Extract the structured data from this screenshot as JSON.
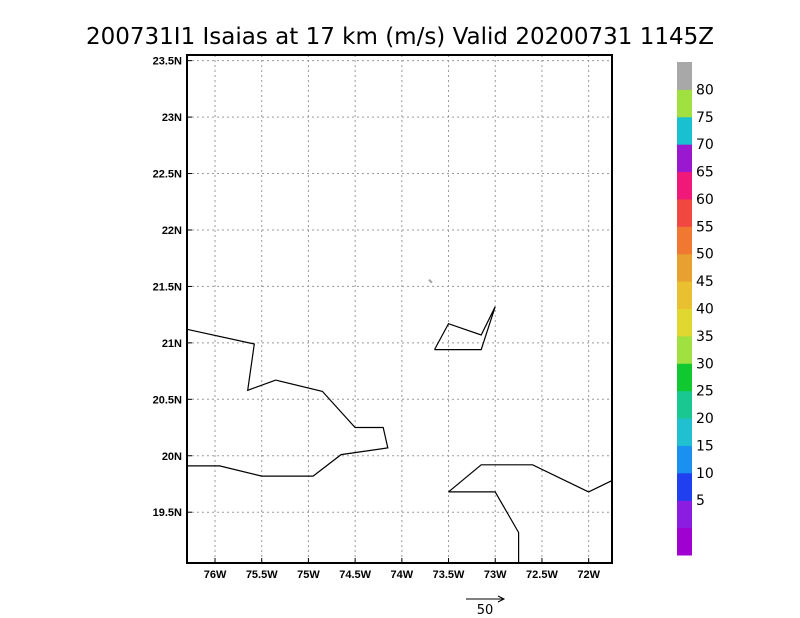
{
  "title": "200731I1 Isaias at 17 km (m/s) Valid 20200731 1145Z",
  "map": {
    "lon_range": [
      -76.3,
      -71.75
    ],
    "lat_range": [
      19.05,
      23.55
    ],
    "lon_ticks": [
      {
        "value": -76.0,
        "label": "76W"
      },
      {
        "value": -75.5,
        "label": "75.5W"
      },
      {
        "value": -75.0,
        "label": "75W"
      },
      {
        "value": -74.5,
        "label": "74.5W"
      },
      {
        "value": -74.0,
        "label": "74W"
      },
      {
        "value": -73.5,
        "label": "73.5W"
      },
      {
        "value": -73.0,
        "label": "73W"
      },
      {
        "value": -72.5,
        "label": "72.5W"
      },
      {
        "value": -72.0,
        "label": "72W"
      }
    ],
    "lat_ticks": [
      {
        "value": 19.5,
        "label": "19.5N"
      },
      {
        "value": 20.0,
        "label": "20N"
      },
      {
        "value": 20.5,
        "label": "20.5N"
      },
      {
        "value": 21.0,
        "label": "21N"
      },
      {
        "value": 21.5,
        "label": "21.5N"
      },
      {
        "value": 22.0,
        "label": "22N"
      },
      {
        "value": 22.5,
        "label": "22.5N"
      },
      {
        "value": 23.0,
        "label": "23N"
      },
      {
        "value": 23.5,
        "label": "23.5N"
      }
    ],
    "grid": true,
    "coastlines": [
      {
        "name": "cuba-north",
        "points": [
          [
            -76.3,
            21.12
          ],
          [
            -75.58,
            20.99
          ],
          [
            -75.65,
            20.58
          ],
          [
            -75.35,
            20.67
          ],
          [
            -74.85,
            20.57
          ],
          [
            -74.5,
            20.25
          ],
          [
            -74.2,
            20.25
          ],
          [
            -74.15,
            20.07
          ],
          [
            -74.65,
            20.01
          ],
          [
            -74.95,
            19.82
          ],
          [
            -75.5,
            19.82
          ],
          [
            -75.95,
            19.91
          ],
          [
            -76.3,
            19.91
          ]
        ]
      },
      {
        "name": "great-inagua",
        "points": [
          [
            -73.65,
            20.94
          ],
          [
            -73.5,
            21.17
          ],
          [
            -73.15,
            21.07
          ],
          [
            -73.0,
            21.32
          ],
          [
            -73.15,
            20.94
          ],
          [
            -73.65,
            20.94
          ]
        ]
      },
      {
        "name": "hispaniola-north",
        "points": [
          [
            -73.5,
            19.68
          ],
          [
            -73.15,
            19.92
          ],
          [
            -72.6,
            19.92
          ],
          [
            -72.0,
            19.68
          ],
          [
            -71.75,
            19.78
          ]
        ]
      },
      {
        "name": "hispaniola-nw-peninsula",
        "points": [
          [
            -73.5,
            19.68
          ],
          [
            -73.0,
            19.68
          ],
          [
            -72.75,
            19.32
          ],
          [
            -72.75,
            19.05
          ]
        ]
      }
    ],
    "vectors": [
      {
        "lon": -73.71,
        "lat": 21.56,
        "u": 1.5,
        "v": -1.5,
        "color": "#a0a0a0"
      }
    ]
  },
  "reference_vector": {
    "label": "50"
  },
  "colorbar": {
    "levels": [
      {
        "label": "",
        "color": "#a000d0"
      },
      {
        "label": "5",
        "color": "#8a1de0"
      },
      {
        "label": "10",
        "color": "#2040f0"
      },
      {
        "label": "15",
        "color": "#1a90f0"
      },
      {
        "label": "20",
        "color": "#20c0d0"
      },
      {
        "label": "25",
        "color": "#18c890"
      },
      {
        "label": "30",
        "color": "#10c830"
      },
      {
        "label": "35",
        "color": "#a0e040"
      },
      {
        "label": "40",
        "color": "#e0d830"
      },
      {
        "label": "45",
        "color": "#e8c030"
      },
      {
        "label": "50",
        "color": "#e8a030"
      },
      {
        "label": "55",
        "color": "#f07830"
      },
      {
        "label": "60",
        "color": "#f04840"
      },
      {
        "label": "65",
        "color": "#f01878"
      },
      {
        "label": "70",
        "color": "#9a18d0"
      },
      {
        "label": "75",
        "color": "#18c0d0"
      },
      {
        "label": "80",
        "color": "#a0e040"
      },
      {
        "label": "",
        "color": "#a8a8a8"
      }
    ]
  }
}
